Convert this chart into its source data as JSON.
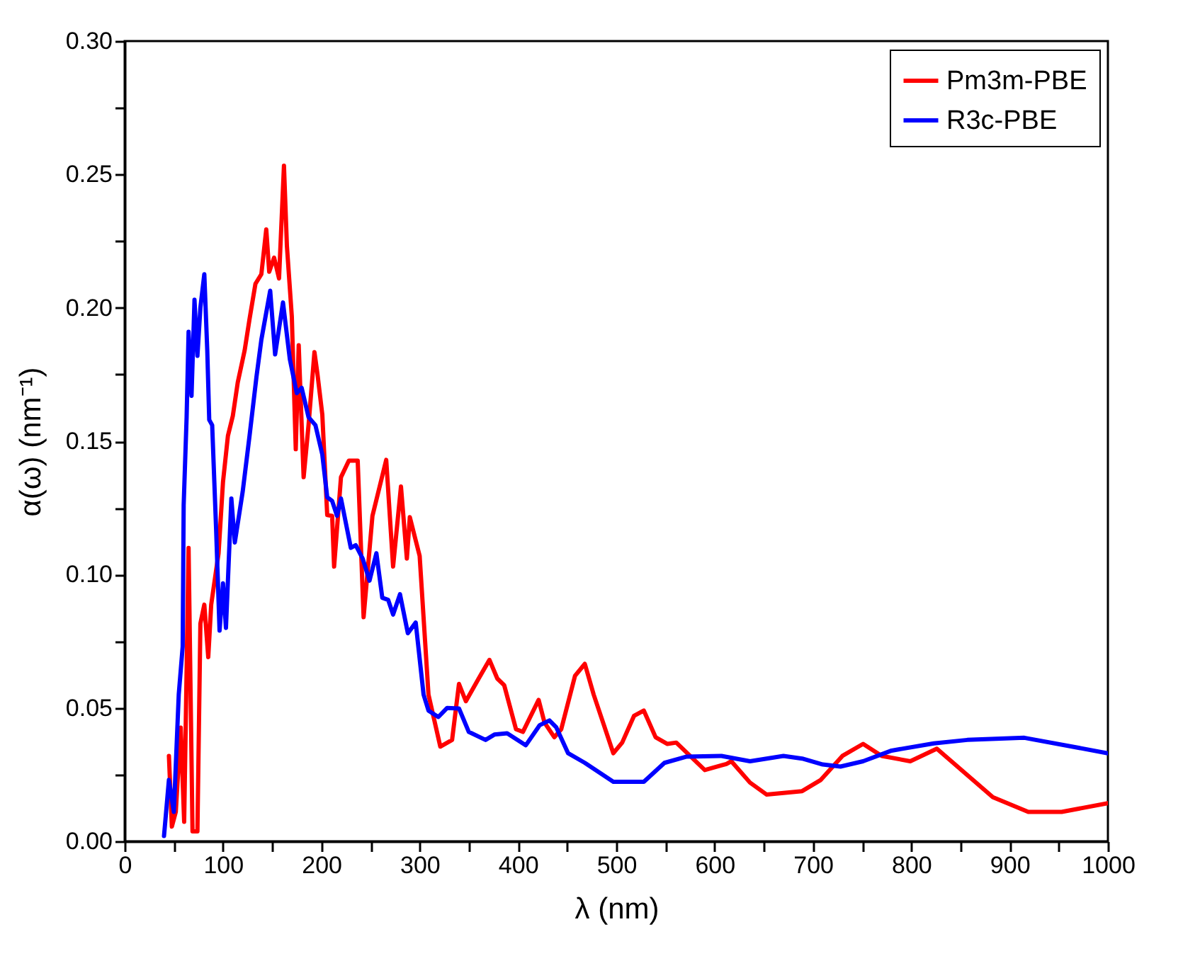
{
  "chart_data": {
    "type": "line",
    "xlabel": "λ (nm)",
    "ylabel": "α(ω) (nm⁻¹)",
    "xlim": [
      0,
      1000
    ],
    "ylim": [
      0,
      0.3
    ],
    "xticks": [
      0,
      {
        "value": 50,
        "label": null
      },
      100,
      {
        "value": 150,
        "label": null
      },
      200,
      {
        "value": 250,
        "label": null
      },
      300,
      {
        "value": 350,
        "label": null
      },
      400,
      {
        "value": 450,
        "label": null
      },
      500,
      {
        "value": 550,
        "label": null
      },
      600,
      {
        "value": 650,
        "label": null
      },
      700,
      {
        "value": 750,
        "label": null
      },
      800,
      {
        "value": 850,
        "label": null
      },
      900,
      {
        "value": 950,
        "label": null
      },
      1000
    ],
    "yticks": [
      {
        "value": 0,
        "label": "0.00"
      },
      {
        "value": 0.025,
        "label": null
      },
      {
        "value": 0.05,
        "label": "0.05"
      },
      {
        "value": 0.075,
        "label": null
      },
      {
        "value": 0.1,
        "label": "0.10"
      },
      {
        "value": 0.125,
        "label": null
      },
      {
        "value": 0.15,
        "label": "0.15"
      },
      {
        "value": 0.175,
        "label": null
      },
      {
        "value": 0.2,
        "label": "0.20"
      },
      {
        "value": 0.225,
        "label": null
      },
      {
        "value": 0.25,
        "label": "0.25"
      },
      {
        "value": 0.275,
        "label": null
      },
      {
        "value": 0.3,
        "label": "0.30"
      }
    ],
    "grid": false,
    "legend": "top right",
    "line_style": "solid",
    "marker": "none",
    "series": [
      {
        "name": "Pm3m-PBE",
        "color": "#ff0000",
        "x": [
          45,
          48,
          52,
          57,
          60.5,
          65,
          69,
          74,
          77,
          81,
          85,
          88,
          95.5,
          100,
          105,
          110,
          115,
          122,
          127,
          133,
          139,
          144,
          147,
          152,
          157,
          162,
          165,
          170,
          174,
          177,
          182,
          187,
          193,
          196,
          201,
          206,
          211,
          213,
          220,
          228,
          237,
          243,
          252,
          266,
          273,
          281,
          287,
          290,
          300,
          309,
          321,
          333,
          340,
          347,
          360,
          371,
          379,
          386,
          398,
          405,
          421,
          427,
          437,
          444,
          458,
          468,
          477,
          497,
          506,
          518,
          528,
          540,
          552,
          561,
          590,
          612,
          617,
          636,
          653,
          689,
          708,
          730,
          751,
          770,
          799,
          826,
          883,
          919,
          953,
          1000
        ],
        "values": [
          0.032,
          0.0055,
          0.011,
          0.0426,
          0.0073,
          0.11,
          0.0037,
          0.0037,
          0.0816,
          0.0887,
          0.069,
          0.0887,
          0.108,
          0.1347,
          0.152,
          0.1595,
          0.172,
          0.184,
          0.1958,
          0.209,
          0.2126,
          0.2294,
          0.2135,
          0.2188,
          0.211,
          0.2533,
          0.2232,
          0.1967,
          0.147,
          0.186,
          0.1365,
          0.156,
          0.1834,
          0.1754,
          0.16,
          0.1223,
          0.122,
          0.103,
          0.1365,
          0.1427,
          0.1427,
          0.084,
          0.122,
          0.143,
          0.103,
          0.133,
          0.106,
          0.1215,
          0.107,
          0.055,
          0.0355,
          0.038,
          0.059,
          0.0525,
          0.061,
          0.068,
          0.061,
          0.0585,
          0.042,
          0.041,
          0.053,
          0.0445,
          0.039,
          0.042,
          0.062,
          0.0665,
          0.055,
          0.033,
          0.037,
          0.047,
          0.049,
          0.039,
          0.0365,
          0.037,
          0.0267,
          0.029,
          0.03,
          0.022,
          0.0175,
          0.0188,
          0.023,
          0.032,
          0.0365,
          0.032,
          0.03,
          0.0347,
          0.0165,
          0.011,
          0.011,
          0.0143
        ]
      },
      {
        "name": "R3c-PBE",
        "color": "#0000ff",
        "x": [
          40,
          45,
          50,
          55,
          59,
          60,
          63,
          65,
          68,
          71,
          74,
          77,
          81,
          84,
          86,
          89,
          93,
          96.5,
          100,
          103,
          108.5,
          112,
          120,
          127,
          134,
          139,
          148,
          153,
          161,
          168,
          175,
          180,
          187,
          194,
          201,
          206,
          211,
          216,
          220,
          230,
          235,
          242,
          249,
          256,
          262,
          268,
          273,
          280,
          288,
          296,
          304,
          309,
          319,
          328,
          340,
          350,
          367,
          376,
          389,
          408,
          422,
          432,
          439,
          451,
          468,
          497,
          528,
          549,
          571,
          607,
          636,
          670,
          689,
          710,
          728,
          751,
          780,
          823,
          857,
          915,
          1000
        ],
        "values": [
          0.002,
          0.023,
          0.011,
          0.055,
          0.073,
          0.126,
          0.159,
          0.191,
          0.167,
          0.203,
          0.182,
          0.2,
          0.2126,
          0.184,
          0.158,
          0.156,
          0.117,
          0.079,
          0.0967,
          0.08,
          0.1285,
          0.112,
          0.131,
          0.152,
          0.174,
          0.188,
          0.2064,
          0.1825,
          0.202,
          0.1807,
          0.168,
          0.17,
          0.159,
          0.156,
          0.145,
          0.129,
          0.1276,
          0.122,
          0.1285,
          0.11,
          0.111,
          0.106,
          0.0977,
          0.108,
          0.0913,
          0.0905,
          0.085,
          0.0926,
          0.078,
          0.082,
          0.055,
          0.049,
          0.0466,
          0.05,
          0.0498,
          0.041,
          0.038,
          0.04,
          0.0405,
          0.036,
          0.0435,
          0.0453,
          0.0427,
          0.033,
          0.0294,
          0.0223,
          0.0223,
          0.0294,
          0.0317,
          0.032,
          0.03,
          0.032,
          0.031,
          0.0288,
          0.028,
          0.03,
          0.034,
          0.0367,
          0.038,
          0.0388,
          0.033
        ]
      }
    ]
  }
}
